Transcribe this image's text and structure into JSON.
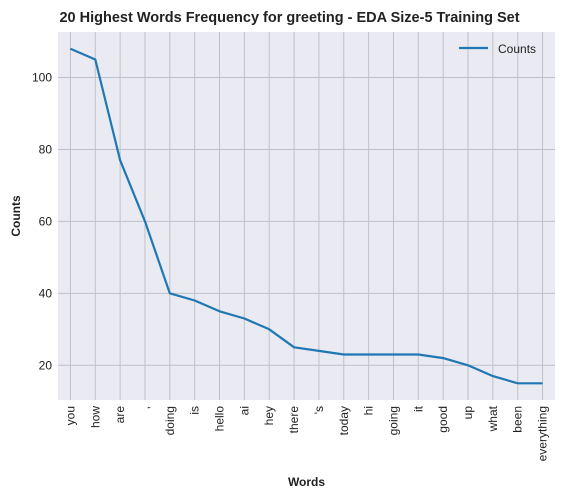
{
  "chart_data": {
    "type": "line",
    "title": "20 Highest Words Frequency for greeting - EDA Size-5 Training Set",
    "xlabel": "Words",
    "ylabel": "Counts",
    "categories": [
      "you",
      "how",
      "are",
      ",",
      "doing",
      "is",
      "hello",
      "ai",
      "hey",
      "there",
      "'s",
      "today",
      "hi",
      "going",
      "it",
      "good",
      "up",
      "what",
      "been",
      "everything"
    ],
    "series": [
      {
        "name": "Counts",
        "values": [
          108,
          105,
          77,
          60,
          40,
          38,
          35,
          33,
          30,
          25,
          24,
          23,
          23,
          23,
          23,
          22,
          20,
          17,
          15,
          15
        ],
        "color": "#1f77b4"
      }
    ],
    "ylim": [
      10.35,
      112.65
    ],
    "yticks": [
      20,
      40,
      60,
      80,
      100
    ],
    "grid": true,
    "legend_position": "top-right"
  }
}
